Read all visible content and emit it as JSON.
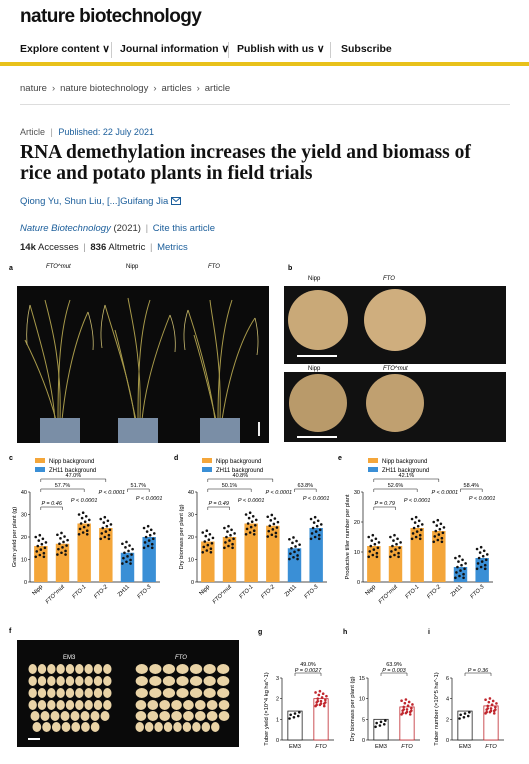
{
  "header": {
    "logo": "nature biotechnology"
  },
  "nav": {
    "items": [
      "Explore content ∨",
      "Journal information ∨",
      "Publish with us ∨",
      "Subscribe"
    ]
  },
  "breadcrumb": {
    "items": [
      "nature",
      "nature biotechnology",
      "articles",
      "article"
    ]
  },
  "article": {
    "type": "Article",
    "published": "Published: 22 July 2021",
    "title": "RNA demethylation increases the yield and biomass of rice and potato plants in field trials",
    "authors": "Qiong Yu, Shun Liu, [...]Guifang Jia",
    "journal": "Nature Biotechnology",
    "year": "(2021)",
    "cite": "Cite this article",
    "accesses_value": "14k",
    "accesses_label": "Accesses",
    "altmetric_value": "836",
    "altmetric_label": "Altmetric",
    "metrics_link": "Metrics"
  },
  "figure": {
    "panel_a": {
      "letter": "a",
      "labels": [
        "FTO^mut",
        "Nipp",
        "FTO"
      ]
    },
    "panel_b": {
      "letter": "b",
      "top_labels": [
        "Nipp",
        "FTO"
      ],
      "bottom_labels": [
        "Nipp",
        "FTO^mut"
      ]
    },
    "panel_f": {
      "letter": "f",
      "labels": [
        "EM3",
        "FTO"
      ]
    },
    "colors": {
      "nipp": "#f4a63a",
      "zh11": "#3a8fd6",
      "fto_red": "#c0262d"
    }
  },
  "chart_data": [
    {
      "panel": "c",
      "type": "bar",
      "legend": [
        "Nipp background",
        "ZH11 background"
      ],
      "ylabel": "Grain yield per plant (g)",
      "categories": [
        "Nipp",
        "FTO^mut",
        "FTO-1",
        "FTO-2",
        "ZH11",
        "FTO-3"
      ],
      "values": [
        16,
        17,
        26,
        24,
        13,
        20
      ],
      "ylim": [
        0,
        40
      ],
      "yticks": [
        0,
        10,
        20,
        30,
        40
      ],
      "annotations": [
        "47.0%",
        "57.7%",
        "P < 0.0001",
        "P = 0.46",
        "P < 0.0001",
        "51.7%",
        "P < 0.0001"
      ]
    },
    {
      "panel": "d",
      "type": "bar",
      "legend": [
        "Nipp background",
        "ZH11 background"
      ],
      "ylabel": "Dry biomass per plant (g)",
      "categories": [
        "Nipp",
        "FTO^mut",
        "FTO-1",
        "FTO-2",
        "ZH11",
        "FTO-3"
      ],
      "values": [
        18,
        20,
        26,
        25,
        15,
        24
      ],
      "ylim": [
        0,
        40
      ],
      "yticks": [
        0,
        10,
        20,
        30,
        40
      ],
      "annotations": [
        "40.8%",
        "50.1%",
        "P < 0.0001",
        "P = 0.49",
        "P < 0.0001",
        "63.8%",
        "P < 0.0001"
      ]
    },
    {
      "panel": "e",
      "type": "bar",
      "legend": [
        "Nipp background",
        "ZH11 background"
      ],
      "ylabel": "Productive tiller number per plant",
      "categories": [
        "Nipp",
        "FTO^mut",
        "FTO-1",
        "FTO-2",
        "ZH11",
        "FTO-3"
      ],
      "values": [
        12,
        12,
        18,
        17,
        5,
        8
      ],
      "ylim": [
        0,
        30
      ],
      "yticks": [
        0,
        10,
        20,
        30
      ],
      "annotations": [
        "42.1%",
        "52.6%",
        "P < 0.0001",
        "P = 0.79",
        "P < 0.0001",
        "58.4%",
        "P < 0.0001"
      ]
    },
    {
      "panel": "g",
      "type": "bar",
      "ylabel": "Tuber yield (×10^4 kg ha^-1)",
      "categories": [
        "EM3",
        "FTO"
      ],
      "values": [
        1.4,
        2.0
      ],
      "ylim": [
        0,
        3
      ],
      "yticks": [
        0,
        1,
        2,
        3
      ],
      "annotations": [
        "49.0%",
        "P = 0.0027"
      ]
    },
    {
      "panel": "h",
      "type": "bar",
      "ylabel": "Dry biomass per plant (g)",
      "categories": [
        "EM3",
        "FTO"
      ],
      "values": [
        5,
        8
      ],
      "ylim": [
        0,
        15
      ],
      "yticks": [
        0,
        5,
        10,
        15
      ],
      "annotations": [
        "63.9%",
        "P = 0.003"
      ]
    },
    {
      "panel": "i",
      "type": "bar",
      "ylabel": "Tuber number (×10^5 ha^-1)",
      "categories": [
        "EM3",
        "FTO"
      ],
      "values": [
        2.8,
        3.3
      ],
      "ylim": [
        0,
        6
      ],
      "yticks": [
        0,
        2,
        4,
        6
      ],
      "annotations": [
        "P = 0.36"
      ]
    }
  ]
}
